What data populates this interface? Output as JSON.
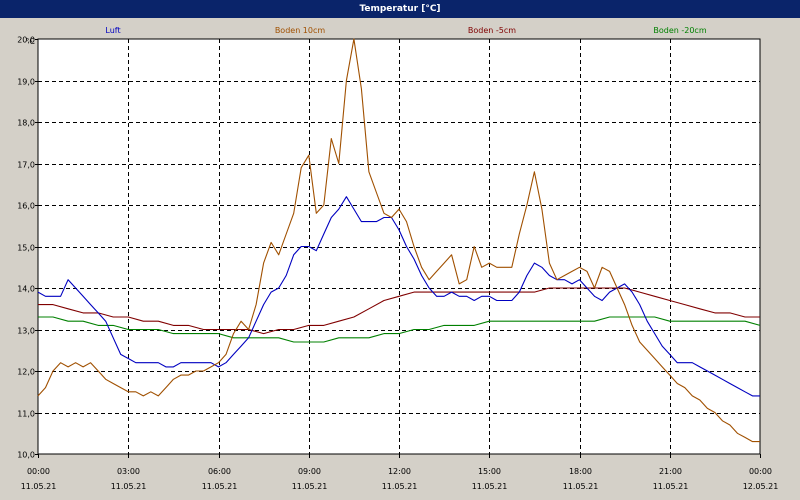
{
  "window": {
    "title": "Temperatur [°C]"
  },
  "chart_data": {
    "type": "line",
    "title": "Temperatur [°C]",
    "ylabel": "°C",
    "xlabel": "",
    "ylim": [
      10.0,
      20.0
    ],
    "yticks": [
      "10,0",
      "11,0",
      "12,0",
      "13,0",
      "14,0",
      "15,0",
      "16,0",
      "17,0",
      "18,0",
      "19,0",
      "20,0"
    ],
    "xlim": [
      0,
      24
    ],
    "xticks": [
      {
        "hour": 0,
        "time": "00:00",
        "date": "11.05.21"
      },
      {
        "hour": 3,
        "time": "03:00",
        "date": "11.05.21"
      },
      {
        "hour": 6,
        "time": "06:00",
        "date": "11.05.21"
      },
      {
        "hour": 9,
        "time": "09:00",
        "date": "11.05.21"
      },
      {
        "hour": 12,
        "time": "12:00",
        "date": "11.05.21"
      },
      {
        "hour": 15,
        "time": "15:00",
        "date": "11.05.21"
      },
      {
        "hour": 18,
        "time": "18:00",
        "date": "11.05.21"
      },
      {
        "hour": 21,
        "time": "21:00",
        "date": "11.05.21"
      },
      {
        "hour": 24,
        "time": "00:00",
        "date": "12.05.21"
      }
    ],
    "grid": true,
    "legend_position": "top",
    "series": [
      {
        "name": "Luft",
        "color": "#0000c0",
        "x": [
          0,
          0.25,
          0.5,
          0.75,
          1.0,
          1.25,
          1.5,
          1.75,
          2.0,
          2.25,
          2.5,
          2.75,
          3.0,
          3.25,
          3.5,
          3.75,
          4.0,
          4.25,
          4.5,
          4.75,
          5.0,
          5.25,
          5.5,
          5.75,
          6.0,
          6.25,
          6.5,
          6.75,
          7.0,
          7.25,
          7.5,
          7.75,
          8.0,
          8.25,
          8.5,
          8.75,
          9.0,
          9.25,
          9.5,
          9.75,
          10.0,
          10.25,
          10.5,
          10.75,
          11.0,
          11.25,
          11.5,
          11.75,
          12.0,
          12.25,
          12.5,
          12.75,
          13.0,
          13.25,
          13.5,
          13.75,
          14.0,
          14.25,
          14.5,
          14.75,
          15.0,
          15.25,
          15.5,
          15.75,
          16.0,
          16.25,
          16.5,
          16.75,
          17.0,
          17.25,
          17.5,
          17.75,
          18.0,
          18.25,
          18.5,
          18.75,
          19.0,
          19.25,
          19.5,
          19.75,
          20.0,
          20.25,
          20.5,
          20.75,
          21.0,
          21.25,
          21.5,
          21.75,
          22.0,
          22.25,
          22.5,
          22.75,
          23.0,
          23.25,
          23.5,
          23.75,
          24.0
        ],
        "values": [
          13.9,
          13.8,
          13.8,
          13.8,
          14.2,
          14.0,
          13.8,
          13.6,
          13.4,
          13.2,
          12.8,
          12.4,
          12.3,
          12.2,
          12.2,
          12.2,
          12.2,
          12.1,
          12.1,
          12.2,
          12.2,
          12.2,
          12.2,
          12.2,
          12.1,
          12.2,
          12.4,
          12.6,
          12.8,
          13.2,
          13.6,
          13.9,
          14.0,
          14.3,
          14.8,
          15.0,
          15.0,
          14.9,
          15.3,
          15.7,
          15.9,
          16.2,
          15.9,
          15.6,
          15.6,
          15.6,
          15.7,
          15.7,
          15.4,
          15.0,
          14.7,
          14.3,
          14.0,
          13.8,
          13.8,
          13.9,
          13.8,
          13.8,
          13.7,
          13.8,
          13.8,
          13.7,
          13.7,
          13.7,
          13.9,
          14.3,
          14.6,
          14.5,
          14.3,
          14.2,
          14.2,
          14.1,
          14.2,
          14.0,
          13.8,
          13.7,
          13.9,
          14.0,
          14.1,
          13.9,
          13.6,
          13.2,
          12.9,
          12.6,
          12.4,
          12.2,
          12.2,
          12.2,
          12.1,
          12.0,
          11.9,
          11.8,
          11.7,
          11.6,
          11.5,
          11.4,
          11.4
        ]
      },
      {
        "name": "Boden 10cm",
        "color": "#a05000",
        "x": [
          0,
          0.25,
          0.5,
          0.75,
          1.0,
          1.25,
          1.5,
          1.75,
          2.0,
          2.25,
          2.5,
          2.75,
          3.0,
          3.25,
          3.5,
          3.75,
          4.0,
          4.25,
          4.5,
          4.75,
          5.0,
          5.25,
          5.5,
          5.75,
          6.0,
          6.25,
          6.5,
          6.75,
          7.0,
          7.25,
          7.5,
          7.75,
          8.0,
          8.25,
          8.5,
          8.75,
          9.0,
          9.25,
          9.5,
          9.75,
          10.0,
          10.25,
          10.5,
          10.75,
          11.0,
          11.25,
          11.5,
          11.75,
          12.0,
          12.25,
          12.5,
          12.75,
          13.0,
          13.25,
          13.5,
          13.75,
          14.0,
          14.25,
          14.5,
          14.75,
          15.0,
          15.25,
          15.5,
          15.75,
          16.0,
          16.25,
          16.5,
          16.75,
          17.0,
          17.25,
          17.5,
          17.75,
          18.0,
          18.25,
          18.5,
          18.75,
          19.0,
          19.25,
          19.5,
          19.75,
          20.0,
          20.25,
          20.5,
          20.75,
          21.0,
          21.25,
          21.5,
          21.75,
          22.0,
          22.25,
          22.5,
          22.75,
          23.0,
          23.25,
          23.5,
          23.75,
          24.0
        ],
        "values": [
          11.4,
          11.6,
          12.0,
          12.2,
          12.1,
          12.2,
          12.1,
          12.2,
          12.0,
          11.8,
          11.7,
          11.6,
          11.5,
          11.5,
          11.4,
          11.5,
          11.4,
          11.6,
          11.8,
          11.9,
          11.9,
          12.0,
          12.0,
          12.1,
          12.2,
          12.4,
          12.9,
          13.2,
          13.0,
          13.6,
          14.6,
          15.1,
          14.8,
          15.3,
          15.8,
          16.9,
          17.2,
          15.8,
          16.0,
          17.6,
          17.0,
          19.0,
          20.0,
          18.8,
          16.8,
          16.3,
          15.8,
          15.7,
          15.9,
          15.6,
          15.0,
          14.5,
          14.2,
          14.4,
          14.6,
          14.8,
          14.1,
          14.2,
          15.0,
          14.5,
          14.6,
          14.5,
          14.5,
          14.5,
          15.3,
          16.0,
          16.8,
          15.9,
          14.6,
          14.2,
          14.3,
          14.4,
          14.5,
          14.4,
          14.0,
          14.5,
          14.4,
          14.0,
          13.6,
          13.1,
          12.7,
          12.5,
          12.3,
          12.1,
          11.9,
          11.7,
          11.6,
          11.4,
          11.3,
          11.1,
          11.0,
          10.8,
          10.7,
          10.5,
          10.4,
          10.3,
          10.3
        ]
      },
      {
        "name": "Boden -5cm",
        "color": "#800000",
        "x": [
          0,
          0.5,
          1.0,
          1.5,
          2.0,
          2.5,
          3.0,
          3.5,
          4.0,
          4.5,
          5.0,
          5.5,
          6.0,
          6.5,
          7.0,
          7.5,
          8.0,
          8.5,
          9.0,
          9.5,
          10.0,
          10.5,
          11.0,
          11.5,
          12.0,
          12.5,
          13.0,
          13.5,
          14.0,
          14.5,
          15.0,
          15.5,
          16.0,
          16.5,
          17.0,
          17.5,
          18.0,
          18.5,
          19.0,
          19.5,
          20.0,
          20.5,
          21.0,
          21.5,
          22.0,
          22.5,
          23.0,
          23.5,
          24.0
        ],
        "values": [
          13.6,
          13.6,
          13.5,
          13.4,
          13.4,
          13.3,
          13.3,
          13.2,
          13.2,
          13.1,
          13.1,
          13.0,
          13.0,
          13.0,
          13.0,
          12.9,
          13.0,
          13.0,
          13.1,
          13.1,
          13.2,
          13.3,
          13.5,
          13.7,
          13.8,
          13.9,
          13.9,
          13.9,
          13.9,
          13.9,
          13.9,
          13.9,
          13.9,
          13.9,
          14.0,
          14.0,
          14.0,
          14.0,
          14.0,
          14.0,
          13.9,
          13.8,
          13.7,
          13.6,
          13.5,
          13.4,
          13.4,
          13.3,
          13.3
        ]
      },
      {
        "name": "Boden -20cm",
        "color": "#008000",
        "x": [
          0,
          0.5,
          1.0,
          1.5,
          2.0,
          2.5,
          3.0,
          3.5,
          4.0,
          4.5,
          5.0,
          5.5,
          6.0,
          6.5,
          7.0,
          7.5,
          8.0,
          8.5,
          9.0,
          9.5,
          10.0,
          10.5,
          11.0,
          11.5,
          12.0,
          12.5,
          13.0,
          13.5,
          14.0,
          14.5,
          15.0,
          15.5,
          16.0,
          16.5,
          17.0,
          17.5,
          18.0,
          18.5,
          19.0,
          19.5,
          20.0,
          20.5,
          21.0,
          21.5,
          22.0,
          22.5,
          23.0,
          23.5,
          24.0
        ],
        "values": [
          13.3,
          13.3,
          13.2,
          13.2,
          13.1,
          13.1,
          13.0,
          13.0,
          13.0,
          12.9,
          12.9,
          12.9,
          12.9,
          12.8,
          12.8,
          12.8,
          12.8,
          12.7,
          12.7,
          12.7,
          12.8,
          12.8,
          12.8,
          12.9,
          12.9,
          13.0,
          13.0,
          13.1,
          13.1,
          13.1,
          13.2,
          13.2,
          13.2,
          13.2,
          13.2,
          13.2,
          13.2,
          13.2,
          13.3,
          13.3,
          13.3,
          13.3,
          13.2,
          13.2,
          13.2,
          13.2,
          13.2,
          13.2,
          13.1
        ]
      }
    ]
  }
}
